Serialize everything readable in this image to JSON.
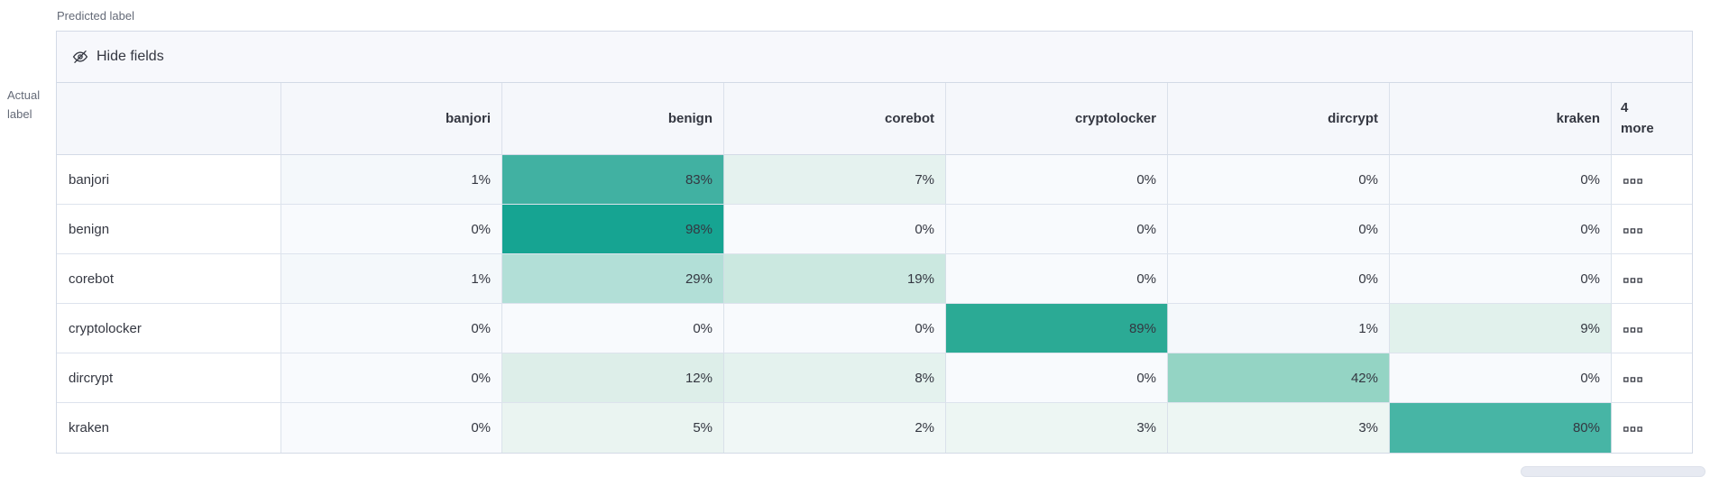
{
  "axis": {
    "predicted": "Predicted label",
    "actual": [
      "Actual",
      "label"
    ]
  },
  "toolbar": {
    "hide_fields": "Hide fields",
    "hide_fields_icon": "eye-closed-icon"
  },
  "grid": {
    "columns": [
      "banjori",
      "benign",
      "corebot",
      "cryptolocker",
      "dircrypt",
      "kraken"
    ],
    "more_header": [
      "4",
      "more"
    ],
    "row_more_icon": "boxes-horizontal-icon",
    "rows": [
      {
        "label": "banjori",
        "cells": [
          {
            "v": "1%",
            "bg": "#f4f8fb"
          },
          {
            "v": "83%",
            "bg": "#41b1a2"
          },
          {
            "v": "7%",
            "bg": "#e5f2ef"
          },
          {
            "v": "0%",
            "bg": "#f8fafd"
          },
          {
            "v": "0%",
            "bg": "#f8fafd"
          },
          {
            "v": "0%",
            "bg": "#f8fafd"
          }
        ]
      },
      {
        "label": "benign",
        "cells": [
          {
            "v": "0%",
            "bg": "#f8fafd"
          },
          {
            "v": "98%",
            "bg": "#16a492"
          },
          {
            "v": "0%",
            "bg": "#f8fafd"
          },
          {
            "v": "0%",
            "bg": "#f8fafd"
          },
          {
            "v": "0%",
            "bg": "#f8fafd"
          },
          {
            "v": "0%",
            "bg": "#f8fafd"
          }
        ]
      },
      {
        "label": "corebot",
        "cells": [
          {
            "v": "1%",
            "bg": "#f4f8fb"
          },
          {
            "v": "29%",
            "bg": "#b2dfd7"
          },
          {
            "v": "19%",
            "bg": "#cbe8e0"
          },
          {
            "v": "0%",
            "bg": "#f8fafd"
          },
          {
            "v": "0%",
            "bg": "#f8fafd"
          },
          {
            "v": "0%",
            "bg": "#f8fafd"
          }
        ]
      },
      {
        "label": "cryptolocker",
        "cells": [
          {
            "v": "0%",
            "bg": "#f8fafd"
          },
          {
            "v": "0%",
            "bg": "#f8fafd"
          },
          {
            "v": "0%",
            "bg": "#f8fafd"
          },
          {
            "v": "89%",
            "bg": "#2baa95"
          },
          {
            "v": "1%",
            "bg": "#f4f8fb"
          },
          {
            "v": "9%",
            "bg": "#e1f1ec"
          }
        ]
      },
      {
        "label": "dircrypt",
        "cells": [
          {
            "v": "0%",
            "bg": "#f8fafd"
          },
          {
            "v": "12%",
            "bg": "#ddeee9"
          },
          {
            "v": "8%",
            "bg": "#e4f2ee"
          },
          {
            "v": "0%",
            "bg": "#f8fafd"
          },
          {
            "v": "42%",
            "bg": "#94d4c4"
          },
          {
            "v": "0%",
            "bg": "#f8fafd"
          }
        ]
      },
      {
        "label": "kraken",
        "cells": [
          {
            "v": "0%",
            "bg": "#f8fafd"
          },
          {
            "v": "5%",
            "bg": "#eaf4f1"
          },
          {
            "v": "2%",
            "bg": "#f0f7f6"
          },
          {
            "v": "3%",
            "bg": "#edf6f3"
          },
          {
            "v": "3%",
            "bg": "#edf6f3"
          },
          {
            "v": "80%",
            "bg": "#47b5a5"
          }
        ]
      }
    ]
  },
  "colors": {
    "accent_teal": "#16a492",
    "panel_border": "#d3dae6",
    "header_bg": "#f5f7fb",
    "toolbar_bg": "#f7f8fc",
    "text": "#343741",
    "muted_text": "#646a77",
    "zero_cell": "#f8fafd"
  }
}
